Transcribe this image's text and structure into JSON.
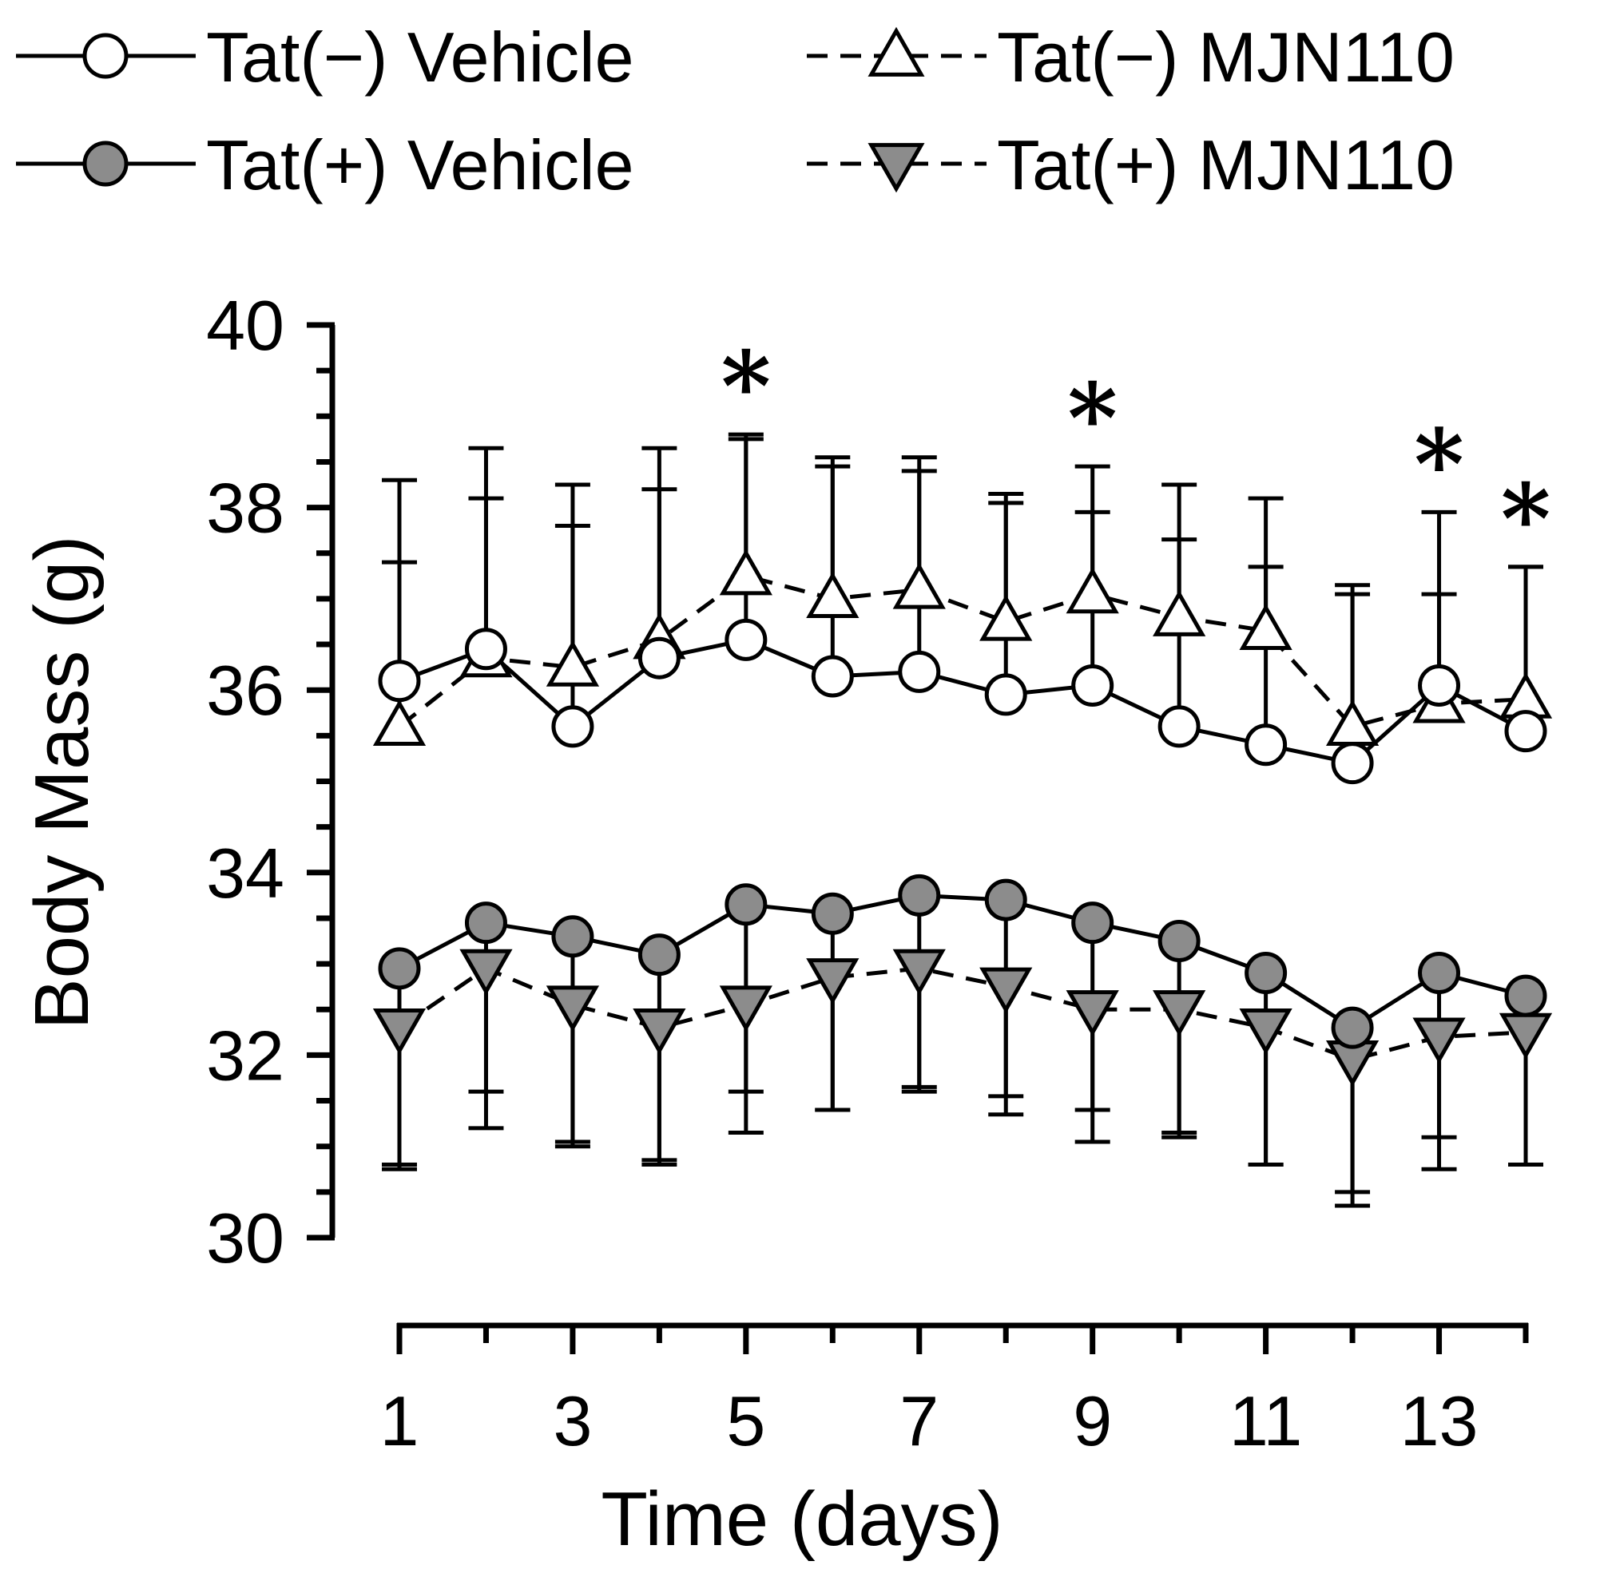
{
  "chart_data": {
    "type": "line",
    "ylabel": "Body Mass (g)",
    "xlabel": "Time (days)",
    "ylim": [
      30,
      40
    ],
    "xlim": [
      1,
      14
    ],
    "yticks": [
      "30",
      "32",
      "34",
      "36",
      "38",
      "40"
    ],
    "xticks": [
      "1",
      "3",
      "5",
      "7",
      "9",
      "11",
      "13"
    ],
    "x": [
      1,
      2,
      3,
      4,
      5,
      6,
      7,
      8,
      9,
      10,
      11,
      12,
      13,
      14
    ],
    "series": [
      {
        "name": "Tat(−) Vehicle",
        "marker": "circle",
        "fill": "#ffffff",
        "dash": false,
        "values": [
          36.1,
          36.45,
          35.6,
          36.35,
          36.55,
          36.15,
          36.2,
          35.95,
          36.05,
          35.6,
          35.4,
          35.2,
          36.05,
          35.55
        ],
        "err_upper": [
          37.4,
          38.1,
          37.8,
          38.2,
          38.75,
          38.45,
          38.4,
          38.05,
          37.95,
          37.65,
          37.35,
          37.05,
          37.05,
          37.35
        ]
      },
      {
        "name": "Tat(−) MJN110",
        "marker": "triangle-up",
        "fill": "#ffffff",
        "dash": true,
        "values": [
          35.6,
          36.35,
          36.25,
          36.55,
          37.25,
          37.0,
          37.1,
          36.75,
          37.05,
          36.8,
          36.65,
          35.6,
          35.85,
          35.9
        ],
        "err_upper": [
          38.3,
          38.65,
          38.25,
          38.65,
          38.8,
          38.55,
          38.55,
          38.15,
          38.45,
          38.25,
          38.1,
          37.15,
          37.95,
          37.35
        ]
      },
      {
        "name": "Tat(+) Vehicle",
        "marker": "circle",
        "fill": "#8c8c8c",
        "dash": false,
        "values": [
          32.95,
          33.45,
          33.3,
          33.1,
          33.65,
          33.55,
          33.75,
          33.7,
          33.45,
          33.25,
          32.9,
          32.3,
          32.9,
          32.65
        ],
        "err_lower": [
          30.8,
          31.6,
          31.05,
          30.85,
          31.6,
          31.4,
          31.65,
          31.55,
          31.4,
          31.15,
          30.8,
          30.5,
          31.1,
          30.8
        ]
      },
      {
        "name": "Tat(+) MJN110",
        "marker": "triangle-down",
        "fill": "#8c8c8c",
        "dash": true,
        "values": [
          32.3,
          32.95,
          32.55,
          32.3,
          32.55,
          32.85,
          32.95,
          32.75,
          32.5,
          32.5,
          32.3,
          31.95,
          32.2,
          32.25
        ],
        "err_lower": [
          30.75,
          31.2,
          31.0,
          30.8,
          31.15,
          31.4,
          31.6,
          31.35,
          31.05,
          31.1,
          30.8,
          30.35,
          30.75,
          30.8
        ]
      }
    ],
    "significance": {
      "marker": "*",
      "days": [
        5,
        9,
        13,
        14
      ]
    }
  }
}
